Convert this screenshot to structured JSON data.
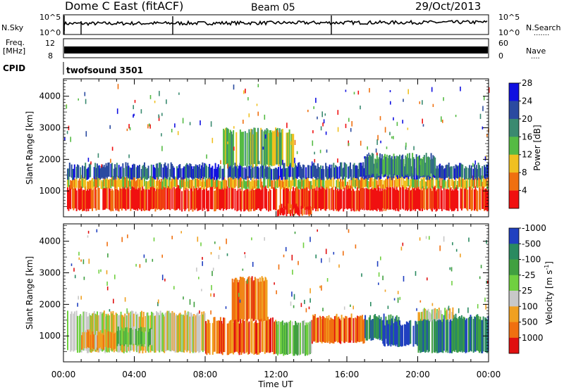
{
  "header": {
    "station": "Dome C East (fitACF)",
    "beam": "Beam 05",
    "date": "29/Oct/2013"
  },
  "top_panels": {
    "nsky_label": "N.Sky",
    "nsearch_label": "N.Search",
    "nsky_tick_top": "10^5",
    "nsky_tick_bottom": "10^0",
    "nsearch_tick_top": "10^5",
    "nsearch_tick_bottom": "10^0",
    "freq_label": "Freq.",
    "freq_unit": "[MHz]",
    "freq_tick_top": "12",
    "freq_tick_bottom": "8",
    "nave_label": "Nave",
    "nave_tick_top": "60",
    "nave_tick_bottom": "0",
    "cpid_label": "CPID",
    "cpid_value": "twofsound 3501"
  },
  "chart_data": [
    {
      "type": "heatmap",
      "name": "power-panel",
      "ylabel": "Slant Range [km]",
      "ylim": [
        180,
        4550
      ],
      "yticks": [
        "1000",
        "2000",
        "3000",
        "4000"
      ],
      "ytick_values": [
        1000,
        2000,
        3000,
        4000
      ],
      "xlim": [
        0,
        24
      ],
      "colorbar": {
        "label": "Power [dB]",
        "ticks": [
          "4",
          "8",
          "12",
          "16",
          "20",
          "24",
          "28"
        ],
        "colors": [
          "#1010e0",
          "#2a4aa0",
          "#3a8a70",
          "#55bb44",
          "#f0c020",
          "#f07010",
          "#f01010"
        ]
      },
      "bands": [
        {
          "t0": 0.2,
          "t1": 24,
          "r0": 400,
          "r1": 1100,
          "level": 6
        },
        {
          "t0": 0.2,
          "t1": 24,
          "r0": 1100,
          "r1": 1400,
          "level": 4
        },
        {
          "t0": 0.2,
          "t1": 24,
          "r0": 1400,
          "r1": 1800,
          "level": 1
        },
        {
          "t0": 9,
          "t1": 13,
          "r0": 1800,
          "r1": 2900,
          "level": 3
        },
        {
          "t0": 12,
          "t1": 14,
          "r0": 250,
          "r1": 500,
          "level": 6
        },
        {
          "t0": 17,
          "t1": 21,
          "r0": 1500,
          "r1": 2100,
          "level": 2
        }
      ]
    },
    {
      "type": "heatmap",
      "name": "velocity-panel",
      "ylabel": "Slant Range [km]",
      "ylim": [
        180,
        4550
      ],
      "yticks": [
        "1000",
        "2000",
        "3000",
        "4000"
      ],
      "ytick_values": [
        1000,
        2000,
        3000,
        4000
      ],
      "xlim": [
        0,
        24
      ],
      "xlabel": "Time UT",
      "xticks": [
        "00:00",
        "04:00",
        "08:00",
        "12:00",
        "16:00",
        "20:00",
        "00:00"
      ],
      "xtick_values": [
        0,
        4,
        8,
        12,
        16,
        20,
        24
      ],
      "colorbar": {
        "label": "Velocity [m s",
        "label_sup": "-1",
        "label_end": "]",
        "ticks": [
          "1000",
          "500",
          "100",
          "25",
          "-25",
          "-100",
          "-500",
          "-1000"
        ],
        "colors": [
          "#2040c0",
          "#2a8a60",
          "#40a040",
          "#70d040",
          "#c8c8c8",
          "#f0a020",
          "#f07010",
          "#e01010"
        ]
      },
      "bands": [
        {
          "t0": 0.2,
          "t1": 8,
          "r0": 500,
          "r1": 1700,
          "level": 4
        },
        {
          "t0": 1,
          "t1": 3,
          "r0": 600,
          "r1": 1100,
          "level": 5
        },
        {
          "t0": 3,
          "t1": 5,
          "r0": 700,
          "r1": 1200,
          "level": 3
        },
        {
          "t0": 8,
          "t1": 12,
          "r0": 450,
          "r1": 1500,
          "level": 6
        },
        {
          "t0": 9.5,
          "t1": 11.5,
          "r0": 1500,
          "r1": 2800,
          "level": 6
        },
        {
          "t0": 12,
          "t1": 14,
          "r0": 400,
          "r1": 1400,
          "level": 3
        },
        {
          "t0": 14,
          "t1": 17,
          "r0": 800,
          "r1": 1600,
          "level": 6
        },
        {
          "t0": 17,
          "t1": 19,
          "r0": 900,
          "r1": 1600,
          "level": 1
        },
        {
          "t0": 18,
          "t1": 20,
          "r0": 700,
          "r1": 1400,
          "level": 0
        },
        {
          "t0": 20,
          "t1": 24,
          "r0": 500,
          "r1": 1600,
          "level": 1
        },
        {
          "t0": 20,
          "t1": 22,
          "r0": 1500,
          "r1": 1800,
          "level": 4
        }
      ]
    }
  ]
}
